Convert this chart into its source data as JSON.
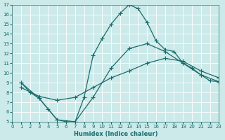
{
  "xlabel": "Humidex (Indice chaleur)",
  "xlim": [
    0,
    23
  ],
  "ylim": [
    5,
    17
  ],
  "xticks": [
    0,
    1,
    2,
    3,
    4,
    5,
    6,
    7,
    8,
    9,
    10,
    11,
    12,
    13,
    14,
    15,
    16,
    17,
    18,
    19,
    20,
    21,
    22,
    23
  ],
  "yticks": [
    5,
    6,
    7,
    8,
    9,
    10,
    11,
    12,
    13,
    14,
    15,
    16,
    17
  ],
  "bg_color": "#cceaea",
  "grid_color": "#ffffff",
  "line_color": "#1a6b6b",
  "line1_x": [
    1,
    2,
    3,
    4,
    5,
    6,
    7,
    8,
    9,
    10,
    11,
    12,
    13,
    14,
    15,
    16,
    17,
    18,
    19,
    20,
    21,
    22,
    23
  ],
  "line1_y": [
    9.0,
    8.0,
    7.4,
    6.3,
    5.2,
    5.0,
    5.0,
    7.5,
    11.8,
    13.5,
    15.0,
    16.1,
    17.0,
    16.6,
    15.2,
    13.3,
    12.4,
    12.2,
    11.0,
    10.5,
    9.8,
    9.2,
    9.1
  ],
  "line2_x": [
    1,
    3,
    5,
    7,
    9,
    11,
    13,
    15,
    17,
    19,
    21,
    23
  ],
  "line2_y": [
    9.0,
    7.4,
    5.2,
    5.0,
    7.5,
    10.5,
    12.5,
    13.0,
    12.2,
    11.0,
    9.8,
    9.1
  ],
  "line3_x": [
    1,
    3,
    5,
    7,
    9,
    11,
    13,
    15,
    17,
    19,
    21,
    23
  ],
  "line3_y": [
    8.5,
    7.6,
    7.2,
    7.5,
    8.5,
    9.5,
    10.2,
    11.0,
    11.5,
    11.2,
    10.2,
    9.5
  ]
}
